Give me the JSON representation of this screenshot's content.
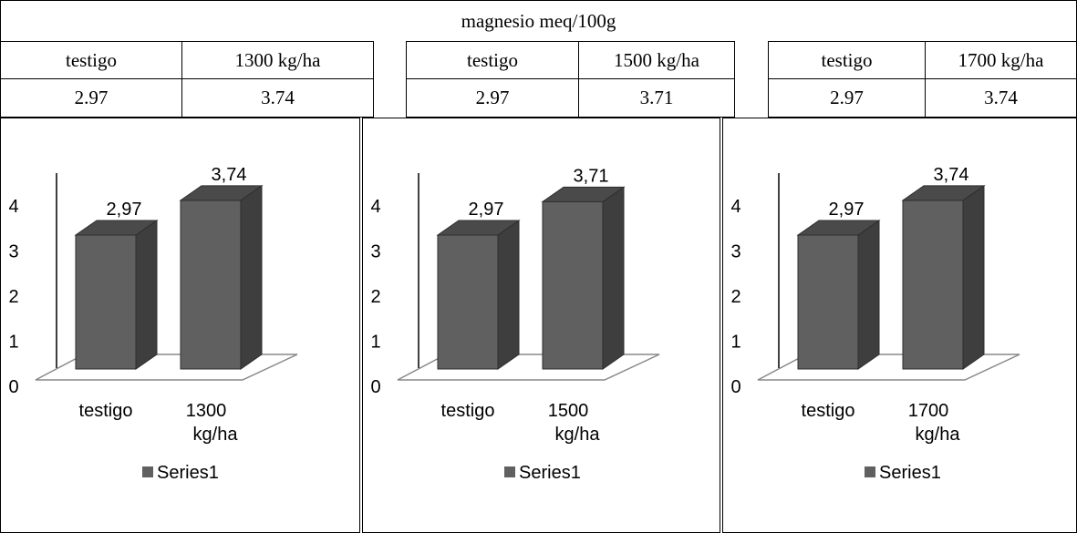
{
  "table": {
    "title": "magnesio meq/100g",
    "groups": [
      {
        "headers": [
          "testigo",
          "1300 kg/ha"
        ],
        "values": [
          "2.97",
          "3.74"
        ]
      },
      {
        "headers": [
          "testigo",
          "1500 kg/ha"
        ],
        "values": [
          "2.97",
          "3.71"
        ]
      },
      {
        "headers": [
          "testigo",
          "1700 kg/ha"
        ],
        "values": [
          "2.97",
          "3.74"
        ]
      }
    ]
  },
  "chart_data": [
    {
      "type": "bar",
      "categories": [
        [
          "testigo"
        ],
        [
          "1300",
          "kg/ha"
        ]
      ],
      "series": [
        {
          "name": "Series1",
          "values": [
            2.97,
            3.74
          ]
        }
      ],
      "data_labels": [
        "2,97",
        "3,74"
      ],
      "ylim": [
        0,
        4
      ],
      "yticks": [
        "0",
        "1",
        "2",
        "3",
        "4"
      ],
      "legend": "bottom",
      "style": "3d-column",
      "colors": {
        "front": "#606060",
        "side": "#3e3e3e",
        "top": "#4a4a4a"
      }
    },
    {
      "type": "bar",
      "categories": [
        [
          "testigo"
        ],
        [
          "1500",
          "kg/ha"
        ]
      ],
      "series": [
        {
          "name": "Series1",
          "values": [
            2.97,
            3.71
          ]
        }
      ],
      "data_labels": [
        "2,97",
        "3,71"
      ],
      "ylim": [
        0,
        4
      ],
      "yticks": [
        "0",
        "1",
        "2",
        "3",
        "4"
      ],
      "legend": "bottom",
      "style": "3d-column",
      "colors": {
        "front": "#606060",
        "side": "#3e3e3e",
        "top": "#4a4a4a"
      }
    },
    {
      "type": "bar",
      "categories": [
        [
          "testigo"
        ],
        [
          "1700",
          "kg/ha"
        ]
      ],
      "series": [
        {
          "name": "Series1",
          "values": [
            2.97,
            3.74
          ]
        }
      ],
      "data_labels": [
        "2,97",
        "3,74"
      ],
      "ylim": [
        0,
        4
      ],
      "yticks": [
        "0",
        "1",
        "2",
        "3",
        "4"
      ],
      "legend": "bottom",
      "style": "3d-column",
      "colors": {
        "front": "#606060",
        "side": "#3e3e3e",
        "top": "#4a4a4a"
      }
    }
  ]
}
